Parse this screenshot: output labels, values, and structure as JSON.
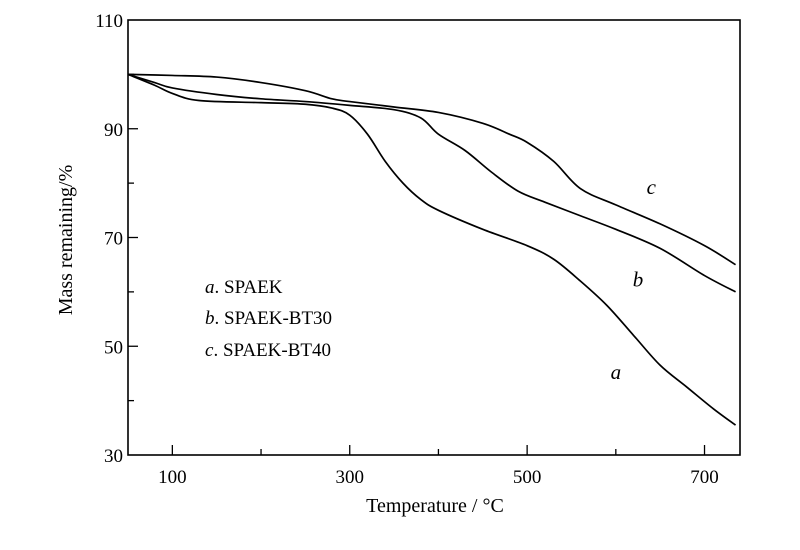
{
  "chart_data": {
    "type": "line",
    "title": "",
    "xlabel": "Temperature / °C",
    "ylabel": "Mass remaining/%",
    "xlim": [
      50,
      740
    ],
    "ylim": [
      30,
      110
    ],
    "xticks": [
      100,
      300,
      500,
      700
    ],
    "yticks": [
      30,
      50,
      70,
      90,
      110
    ],
    "grid": false,
    "legend": {
      "placement": "left-center",
      "entries": [
        {
          "key": "a",
          "text": ". SPAEK"
        },
        {
          "key": "b",
          "text": ". SPAEK-BT30"
        },
        {
          "key": "c",
          "text": ". SPAEK-BT40"
        }
      ]
    },
    "series": [
      {
        "name": "a",
        "label": "a",
        "label_at": [
          600,
          44
        ],
        "points": [
          [
            50,
            100
          ],
          [
            80,
            98
          ],
          [
            100,
            96.5
          ],
          [
            130,
            95.2
          ],
          [
            200,
            94.8
          ],
          [
            250,
            94.5
          ],
          [
            280,
            93.8
          ],
          [
            300,
            92.5
          ],
          [
            320,
            89
          ],
          [
            340,
            84
          ],
          [
            360,
            80
          ],
          [
            380,
            77
          ],
          [
            400,
            75
          ],
          [
            450,
            71.5
          ],
          [
            500,
            68.5
          ],
          [
            530,
            66
          ],
          [
            560,
            62
          ],
          [
            590,
            57.5
          ],
          [
            620,
            52
          ],
          [
            650,
            46.5
          ],
          [
            680,
            42.5
          ],
          [
            710,
            38.5
          ],
          [
            735,
            35.5
          ]
        ]
      },
      {
        "name": "b",
        "label": "b",
        "label_at": [
          625,
          61
        ],
        "points": [
          [
            50,
            100
          ],
          [
            80,
            98.5
          ],
          [
            100,
            97.5
          ],
          [
            150,
            96.3
          ],
          [
            200,
            95.5
          ],
          [
            250,
            95
          ],
          [
            300,
            94.3
          ],
          [
            350,
            93.5
          ],
          [
            380,
            92
          ],
          [
            400,
            89
          ],
          [
            430,
            86
          ],
          [
            460,
            82
          ],
          [
            490,
            78.5
          ],
          [
            520,
            76.5
          ],
          [
            560,
            74
          ],
          [
            600,
            71.5
          ],
          [
            650,
            68
          ],
          [
            700,
            63
          ],
          [
            735,
            60
          ]
        ]
      },
      {
        "name": "c",
        "label": "c",
        "label_at": [
          640,
          78
        ],
        "points": [
          [
            50,
            100
          ],
          [
            100,
            99.8
          ],
          [
            150,
            99.5
          ],
          [
            200,
            98.5
          ],
          [
            250,
            97
          ],
          [
            280,
            95.5
          ],
          [
            300,
            95
          ],
          [
            350,
            94
          ],
          [
            400,
            93
          ],
          [
            450,
            91
          ],
          [
            480,
            89
          ],
          [
            500,
            87.5
          ],
          [
            530,
            84
          ],
          [
            560,
            79
          ],
          [
            600,
            76
          ],
          [
            650,
            72.5
          ],
          [
            700,
            68.5
          ],
          [
            735,
            65
          ]
        ]
      }
    ]
  }
}
